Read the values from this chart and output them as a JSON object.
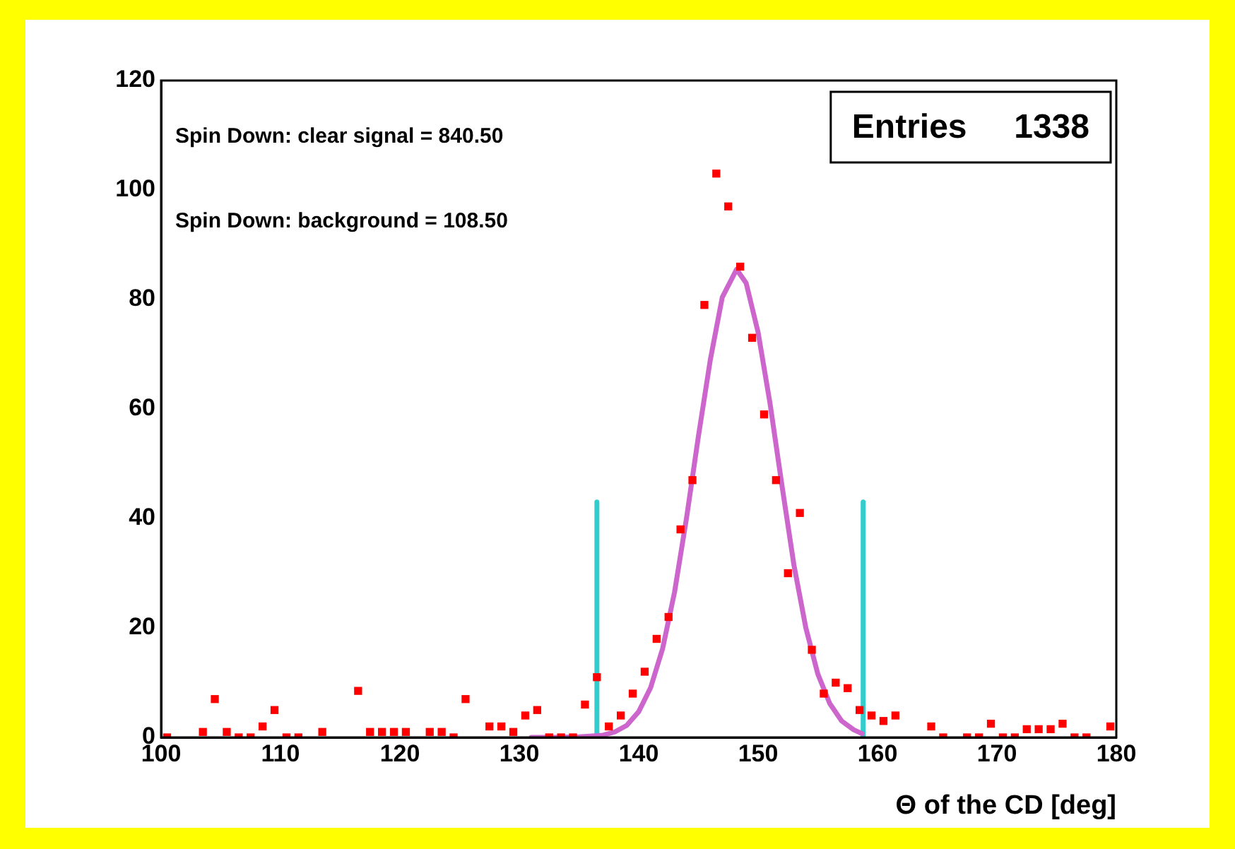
{
  "chart_data": {
    "type": "scatter",
    "xlabel": "Θ of the CD [deg]",
    "xlim": [
      100,
      180
    ],
    "xticks": [
      100,
      110,
      120,
      130,
      140,
      150,
      160,
      170,
      180
    ],
    "ylim": [
      0,
      120
    ],
    "yticks": [
      0,
      20,
      40,
      60,
      80,
      100,
      120
    ],
    "grid": false,
    "legend": false,
    "annotations": [
      "Spin Down: clear signal = 840.50",
      "Spin Down: background = 108.50",
      "Entries     1338"
    ],
    "series": [
      {
        "color": "#ff0000",
        "marker": "square",
        "x": [
          100.5,
          103.5,
          104.5,
          105.5,
          106.5,
          107.5,
          108.5,
          109.5,
          110.5,
          111.5,
          113.5,
          116.5,
          117.5,
          118.5,
          119.5,
          120.5,
          122.5,
          123.5,
          124.5,
          125.5,
          127.5,
          128.5,
          129.5,
          130.5,
          131.5,
          132.5,
          133.5,
          134.5,
          135.5,
          136.5,
          137.5,
          138.5,
          139.5,
          140.5,
          141.5,
          142.5,
          143.5,
          144.5,
          145.5,
          146.5,
          147.5,
          148.5,
          149.5,
          150.5,
          151.5,
          152.5,
          153.5,
          154.5,
          155.5,
          156.5,
          157.5,
          158.5,
          159.5,
          160.5,
          161.5,
          164.5,
          165.5,
          167.5,
          168.5,
          169.5,
          170.5,
          171.5,
          172.5,
          173.5,
          174.5,
          175.5,
          176.5,
          177.5,
          179.5
        ],
        "values": [
          0,
          1,
          7,
          1,
          0,
          0,
          2,
          5,
          0,
          0,
          1,
          8.5,
          1,
          1,
          1,
          1,
          1,
          1,
          0,
          7,
          2,
          2,
          1,
          4,
          5,
          0,
          0,
          0,
          6,
          11,
          2,
          4,
          8,
          12,
          18,
          22,
          38,
          47,
          79,
          103,
          97,
          86,
          73,
          59,
          47,
          30,
          41,
          16,
          8,
          10,
          9,
          5,
          4,
          3,
          4,
          2,
          0,
          0,
          0,
          2.5,
          0,
          0,
          1.5,
          1.5,
          1.5,
          2.5,
          0,
          0,
          2
        ]
      },
      {
        "type": "line",
        "color": "#cc66cc",
        "line_style": "solid",
        "marker": "none",
        "x": [
          131,
          133,
          135,
          137,
          138,
          139,
          140,
          141,
          142,
          143,
          144,
          145,
          146,
          147,
          148.2,
          149,
          150,
          151,
          152,
          153,
          154,
          155,
          156,
          157,
          158,
          158.7
        ],
        "values": [
          0,
          0,
          0.1,
          0.4,
          1,
          2.2,
          4.7,
          9.1,
          16.2,
          26.5,
          40,
          55,
          69,
          80.4,
          85.5,
          83,
          74,
          61,
          46,
          31.5,
          20,
          11.6,
          6.2,
          3,
          1.4,
          0.7
        ]
      },
      {
        "type": "line",
        "color": "#33cccc",
        "line_style": "solid",
        "marker": "none",
        "x": [
          136.5,
          136.5
        ],
        "values": [
          0,
          43
        ]
      },
      {
        "type": "line",
        "color": "#33cccc",
        "line_style": "solid",
        "marker": "none",
        "x": [
          158.8,
          158.8
        ],
        "values": [
          0,
          43
        ]
      }
    ]
  }
}
